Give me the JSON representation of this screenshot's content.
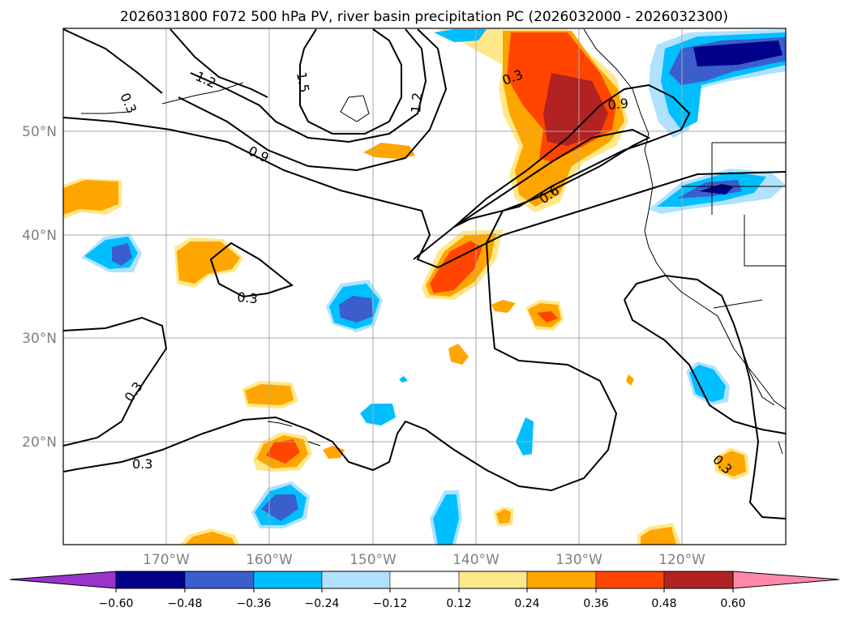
{
  "title": "2026031800 F072 500 hPa PV, river basin precipitation PC (2026032000 - 2026032300)",
  "map": {
    "lat_labels": [
      "50°N",
      "40°N",
      "30°N",
      "20°N"
    ],
    "lon_labels": [
      "170°W",
      "160°W",
      "150°W",
      "140°W",
      "130°W",
      "120°W"
    ],
    "contour_labels": [
      "0.3",
      "1.2",
      "1.5",
      "1.2",
      "0.3",
      "0.9",
      "0.9",
      "0.6",
      "0.3",
      "0.3",
      "0.3",
      "0.3"
    ],
    "colors": {
      "contour": "#000000",
      "gridline": "#aaaaaa",
      "coast": "#000000",
      "axis_label": "#808080"
    }
  },
  "colorbar": {
    "tick_labels": [
      "−0.60",
      "−0.48",
      "−0.36",
      "−0.24",
      "−0.12",
      "0.12",
      "0.24",
      "0.36",
      "0.48",
      "0.60"
    ],
    "colors": [
      "#9933cc",
      "#00008b",
      "#3a5fcd",
      "#00bfff",
      "#b0e2ff",
      "#ffffff",
      "#ffe88a",
      "#ffa500",
      "#ff4500",
      "#b22222",
      "#ff88aa"
    ]
  }
}
